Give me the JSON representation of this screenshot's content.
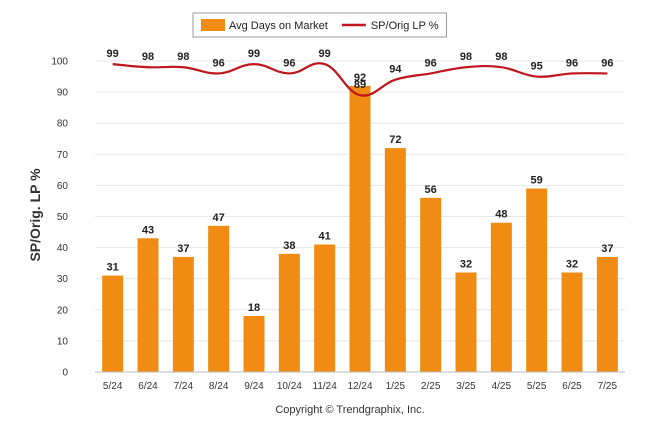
{
  "chart_data": {
    "type": "bar",
    "ylabel": "SP/Orig. LP %",
    "ylim": [
      0,
      100
    ],
    "yticks": [
      0,
      10,
      20,
      30,
      40,
      50,
      60,
      70,
      80,
      90,
      100
    ],
    "grid": true,
    "legend_position": "top-center",
    "categories": [
      "5/24",
      "6/24",
      "7/24",
      "8/24",
      "9/24",
      "10/24",
      "11/24",
      "12/24",
      "1/25",
      "2/25",
      "3/25",
      "4/25",
      "5/25",
      "6/25",
      "7/25"
    ],
    "series": [
      {
        "name": "Avg Days on Market",
        "type": "bar",
        "color": "#f08c14",
        "values": [
          31,
          43,
          37,
          47,
          18,
          38,
          41,
          92,
          72,
          56,
          32,
          48,
          59,
          32,
          37
        ]
      },
      {
        "name": "SP/Orig LP %",
        "type": "line",
        "color": "#c0151d",
        "values": [
          99,
          98,
          98,
          96,
          99,
          96,
          99,
          89,
          94,
          96,
          98,
          98,
          95,
          96,
          96
        ]
      }
    ]
  },
  "footer": {
    "copyright": "Copyright © Trendgraphix, Inc."
  }
}
